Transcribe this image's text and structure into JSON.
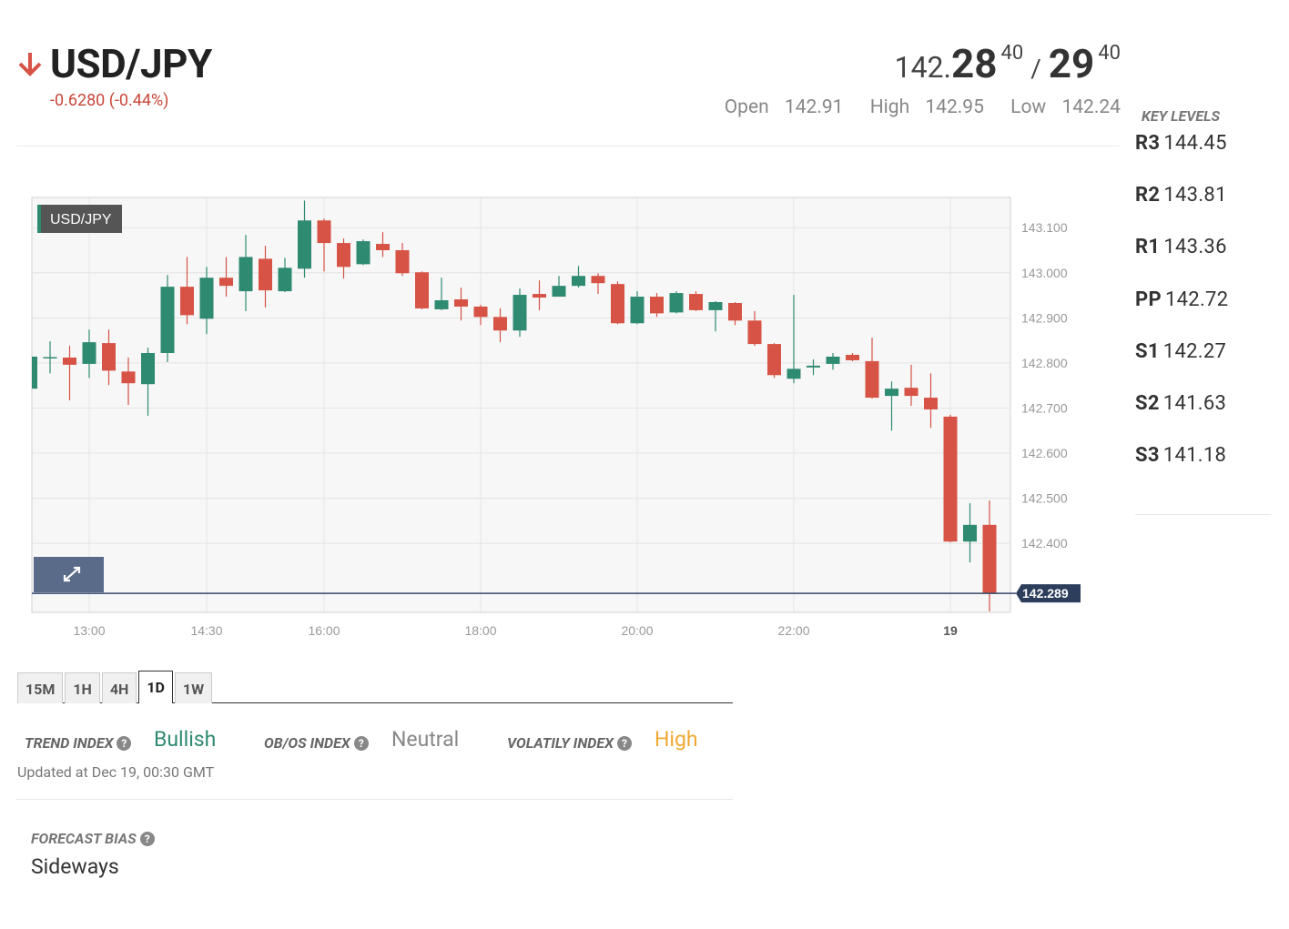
{
  "header": {
    "symbol": "USD/JPY",
    "change": "-0.6280 (-0.44%)",
    "bid": {
      "big": "142.",
      "pips": "28",
      "fraction": "40"
    },
    "separator": "/",
    "ask": {
      "pips": "29",
      "fraction": "40"
    },
    "stats": [
      {
        "label": "Open",
        "value": "142.91"
      },
      {
        "label": "High",
        "value": "142.95"
      },
      {
        "label": "Low",
        "value": "142.24"
      }
    ]
  },
  "key_levels": {
    "title": "KEY LEVELS",
    "levels": [
      {
        "name": "R3",
        "value": "144.45"
      },
      {
        "name": "R2",
        "value": "143.81"
      },
      {
        "name": "R1",
        "value": "143.36"
      },
      {
        "name": "PP",
        "value": "142.72"
      },
      {
        "name": "S1",
        "value": "142.27"
      },
      {
        "name": "S2",
        "value": "141.63"
      },
      {
        "name": "S3",
        "value": "141.18"
      }
    ]
  },
  "chart_data": {
    "type": "candlestick",
    "legend_label": "USD/JPY",
    "categories": [
      null,
      null,
      null,
      "13:00",
      null,
      null,
      null,
      null,
      null,
      "14:30",
      null,
      null,
      null,
      null,
      null,
      "16:00",
      null,
      null,
      null,
      null,
      null,
      null,
      null,
      "18:00",
      null,
      null,
      null,
      null,
      null,
      null,
      null,
      "20:00",
      null,
      null,
      null,
      null,
      null,
      null,
      null,
      "22:00",
      null,
      null,
      null,
      null,
      null,
      null,
      null,
      "19",
      null,
      null
    ],
    "open": [
      142.743,
      142.812,
      142.812,
      142.798,
      142.844,
      142.781,
      142.753,
      142.822,
      142.969,
      142.898,
      142.989,
      142.959,
      143.031,
      142.959,
      143.009,
      143.116,
      143.066,
      143.019,
      143.064,
      143.05,
      143.001,
      142.919,
      142.941,
      142.925,
      142.902,
      142.872,
      142.953,
      142.947,
      142.971,
      142.993,
      142.975,
      142.888,
      142.947,
      142.912,
      142.953,
      142.917,
      142.933,
      142.894,
      142.842,
      142.765,
      142.79,
      142.798,
      142.818,
      142.804,
      142.727,
      142.745,
      142.723,
      142.681,
      142.404,
      142.441
    ],
    "high": [
      142.898,
      142.848,
      142.838,
      142.874,
      142.874,
      142.812,
      142.834,
      142.995,
      143.035,
      143.013,
      143.035,
      143.084,
      143.06,
      143.033,
      143.16,
      143.12,
      143.076,
      143.074,
      143.09,
      143.066,
      143.003,
      142.989,
      142.967,
      142.929,
      142.921,
      142.965,
      142.983,
      142.993,
      143.015,
      142.999,
      142.981,
      142.959,
      142.955,
      142.959,
      142.959,
      142.937,
      142.935,
      142.915,
      142.844,
      142.951,
      142.808,
      142.822,
      142.822,
      142.856,
      142.759,
      142.796,
      142.777,
      142.685,
      142.489,
      142.495
    ],
    "low": [
      142.743,
      142.777,
      142.717,
      142.767,
      142.751,
      142.707,
      142.683,
      142.802,
      142.886,
      142.864,
      142.947,
      142.915,
      142.923,
      142.957,
      142.989,
      143.003,
      142.987,
      143.017,
      143.035,
      142.993,
      142.919,
      142.917,
      142.894,
      142.884,
      142.846,
      142.858,
      142.917,
      142.947,
      142.967,
      142.953,
      142.886,
      142.886,
      142.902,
      142.91,
      142.915,
      142.87,
      142.884,
      142.838,
      142.767,
      142.755,
      142.773,
      142.785,
      142.804,
      142.721,
      142.65,
      142.705,
      142.656,
      142.402,
      142.358,
      142.249
    ],
    "close": [
      142.814,
      142.813,
      142.796,
      142.846,
      142.783,
      142.755,
      142.822,
      142.969,
      142.906,
      142.989,
      142.971,
      143.035,
      142.961,
      143.011,
      143.116,
      143.066,
      143.013,
      143.07,
      143.05,
      142.999,
      142.921,
      142.939,
      142.925,
      142.902,
      142.872,
      142.951,
      142.945,
      142.971,
      142.993,
      142.977,
      142.888,
      142.947,
      142.91,
      142.955,
      142.917,
      142.935,
      142.894,
      142.842,
      142.773,
      142.787,
      142.794,
      142.814,
      142.806,
      142.723,
      142.743,
      142.727,
      142.697,
      142.404,
      142.441,
      142.289
    ],
    "up_color": "#2f8a72",
    "down_color": "#d65345",
    "last_price": 142.289,
    "ylim": [
      142.247,
      143.167
    ],
    "yticks": [
      {
        "value": 142.4,
        "label": "142.400"
      },
      {
        "value": 142.5,
        "label": "142.500"
      },
      {
        "value": 142.6,
        "label": "142.600"
      },
      {
        "value": 142.7,
        "label": "142.700"
      },
      {
        "value": 142.8,
        "label": "142.800"
      },
      {
        "value": 142.9,
        "label": "142.900"
      },
      {
        "value": 143.0,
        "label": "143.000"
      },
      {
        "value": 143.1,
        "label": "143.100"
      }
    ],
    "grid": true
  },
  "timeframes": {
    "tabs": [
      "15M",
      "1H",
      "4H",
      "1D",
      "1W"
    ],
    "active": 3
  },
  "indices": [
    {
      "label": "TREND INDEX",
      "value": "Bullish",
      "color": "#2f8a72"
    },
    {
      "label": "OB/OS INDEX",
      "value": "Neutral",
      "color": "#888888"
    },
    {
      "label": "VOLATILY INDEX",
      "value": "High",
      "color": "#f0a830"
    }
  ],
  "updated": "Updated at Dec 19, 00:30 GMT",
  "forecast": {
    "label": "FORECAST BIAS",
    "value": "Sideways"
  }
}
